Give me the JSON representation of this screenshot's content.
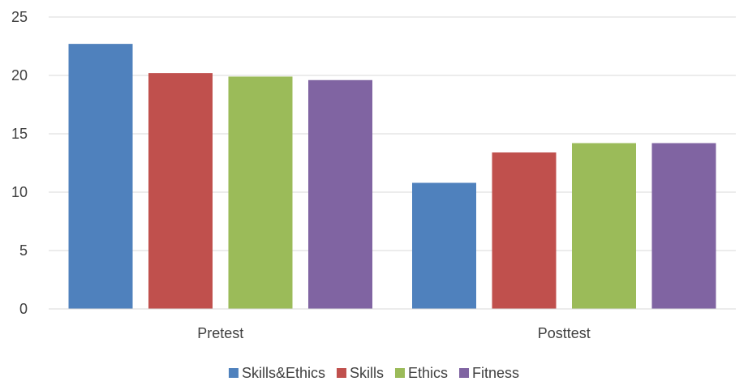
{
  "chart_data": {
    "type": "bar",
    "categories": [
      "Pretest",
      "Posttest"
    ],
    "series": [
      {
        "name": "Skills&Ethics",
        "color": "#4F81BD",
        "values": [
          22.7,
          10.8
        ]
      },
      {
        "name": "Skills",
        "color": "#C0504D",
        "values": [
          20.2,
          13.4
        ]
      },
      {
        "name": "Ethics",
        "color": "#9BBB59",
        "values": [
          19.9,
          14.2
        ]
      },
      {
        "name": "Fitness",
        "color": "#8064A2",
        "values": [
          19.6,
          14.2
        ]
      }
    ],
    "ylim": [
      0,
      25
    ],
    "yticks": [
      0,
      5,
      10,
      15,
      20,
      25
    ],
    "grid": true,
    "legend_position": "bottom",
    "gridline_color": "#D9D9D9",
    "axis_color": "#D9D9D9",
    "text_color": "#404040"
  }
}
